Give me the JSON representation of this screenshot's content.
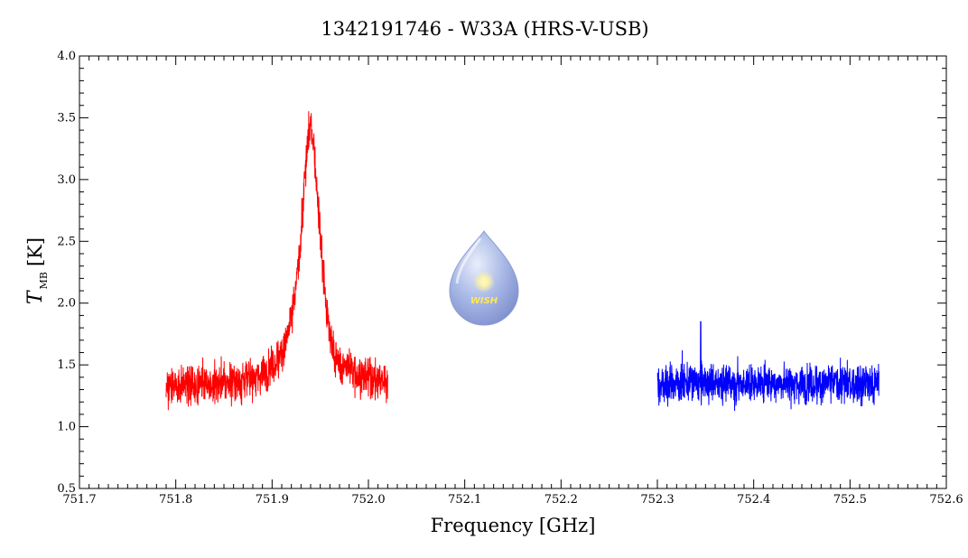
{
  "chart_data": {
    "type": "line",
    "title": "1342191746 - W33A (HRS-V-USB)",
    "xlabel": "Frequency [GHz]",
    "ylabel": {
      "symbol": "T",
      "subscript": "MB",
      "unit": "[K]"
    },
    "xlim": [
      751.7,
      752.6
    ],
    "ylim": [
      0.5,
      4.0
    ],
    "x_ticks": [
      "751.7",
      "751.8",
      "751.9",
      "752.0",
      "752.1",
      "752.2",
      "752.3",
      "752.4",
      "752.5",
      "752.6"
    ],
    "y_ticks": [
      "0.5",
      "1.0",
      "1.5",
      "2.0",
      "2.5",
      "3.0",
      "3.5",
      "4.0"
    ],
    "grid": false,
    "series": [
      {
        "color": "#ff0000",
        "x_range": [
          751.79,
          752.02
        ],
        "baseline": 1.32,
        "noise_rms": 0.12,
        "peak": {
          "x": 751.94,
          "y": 3.62,
          "width": 0.012
        }
      },
      {
        "color": "#0000ff",
        "x_range": [
          752.3,
          752.53
        ],
        "baseline": 1.35,
        "noise_rms": 0.12,
        "spike": {
          "x": 752.345,
          "y": 1.85
        }
      }
    ],
    "logo": {
      "text": "WISH"
    }
  }
}
